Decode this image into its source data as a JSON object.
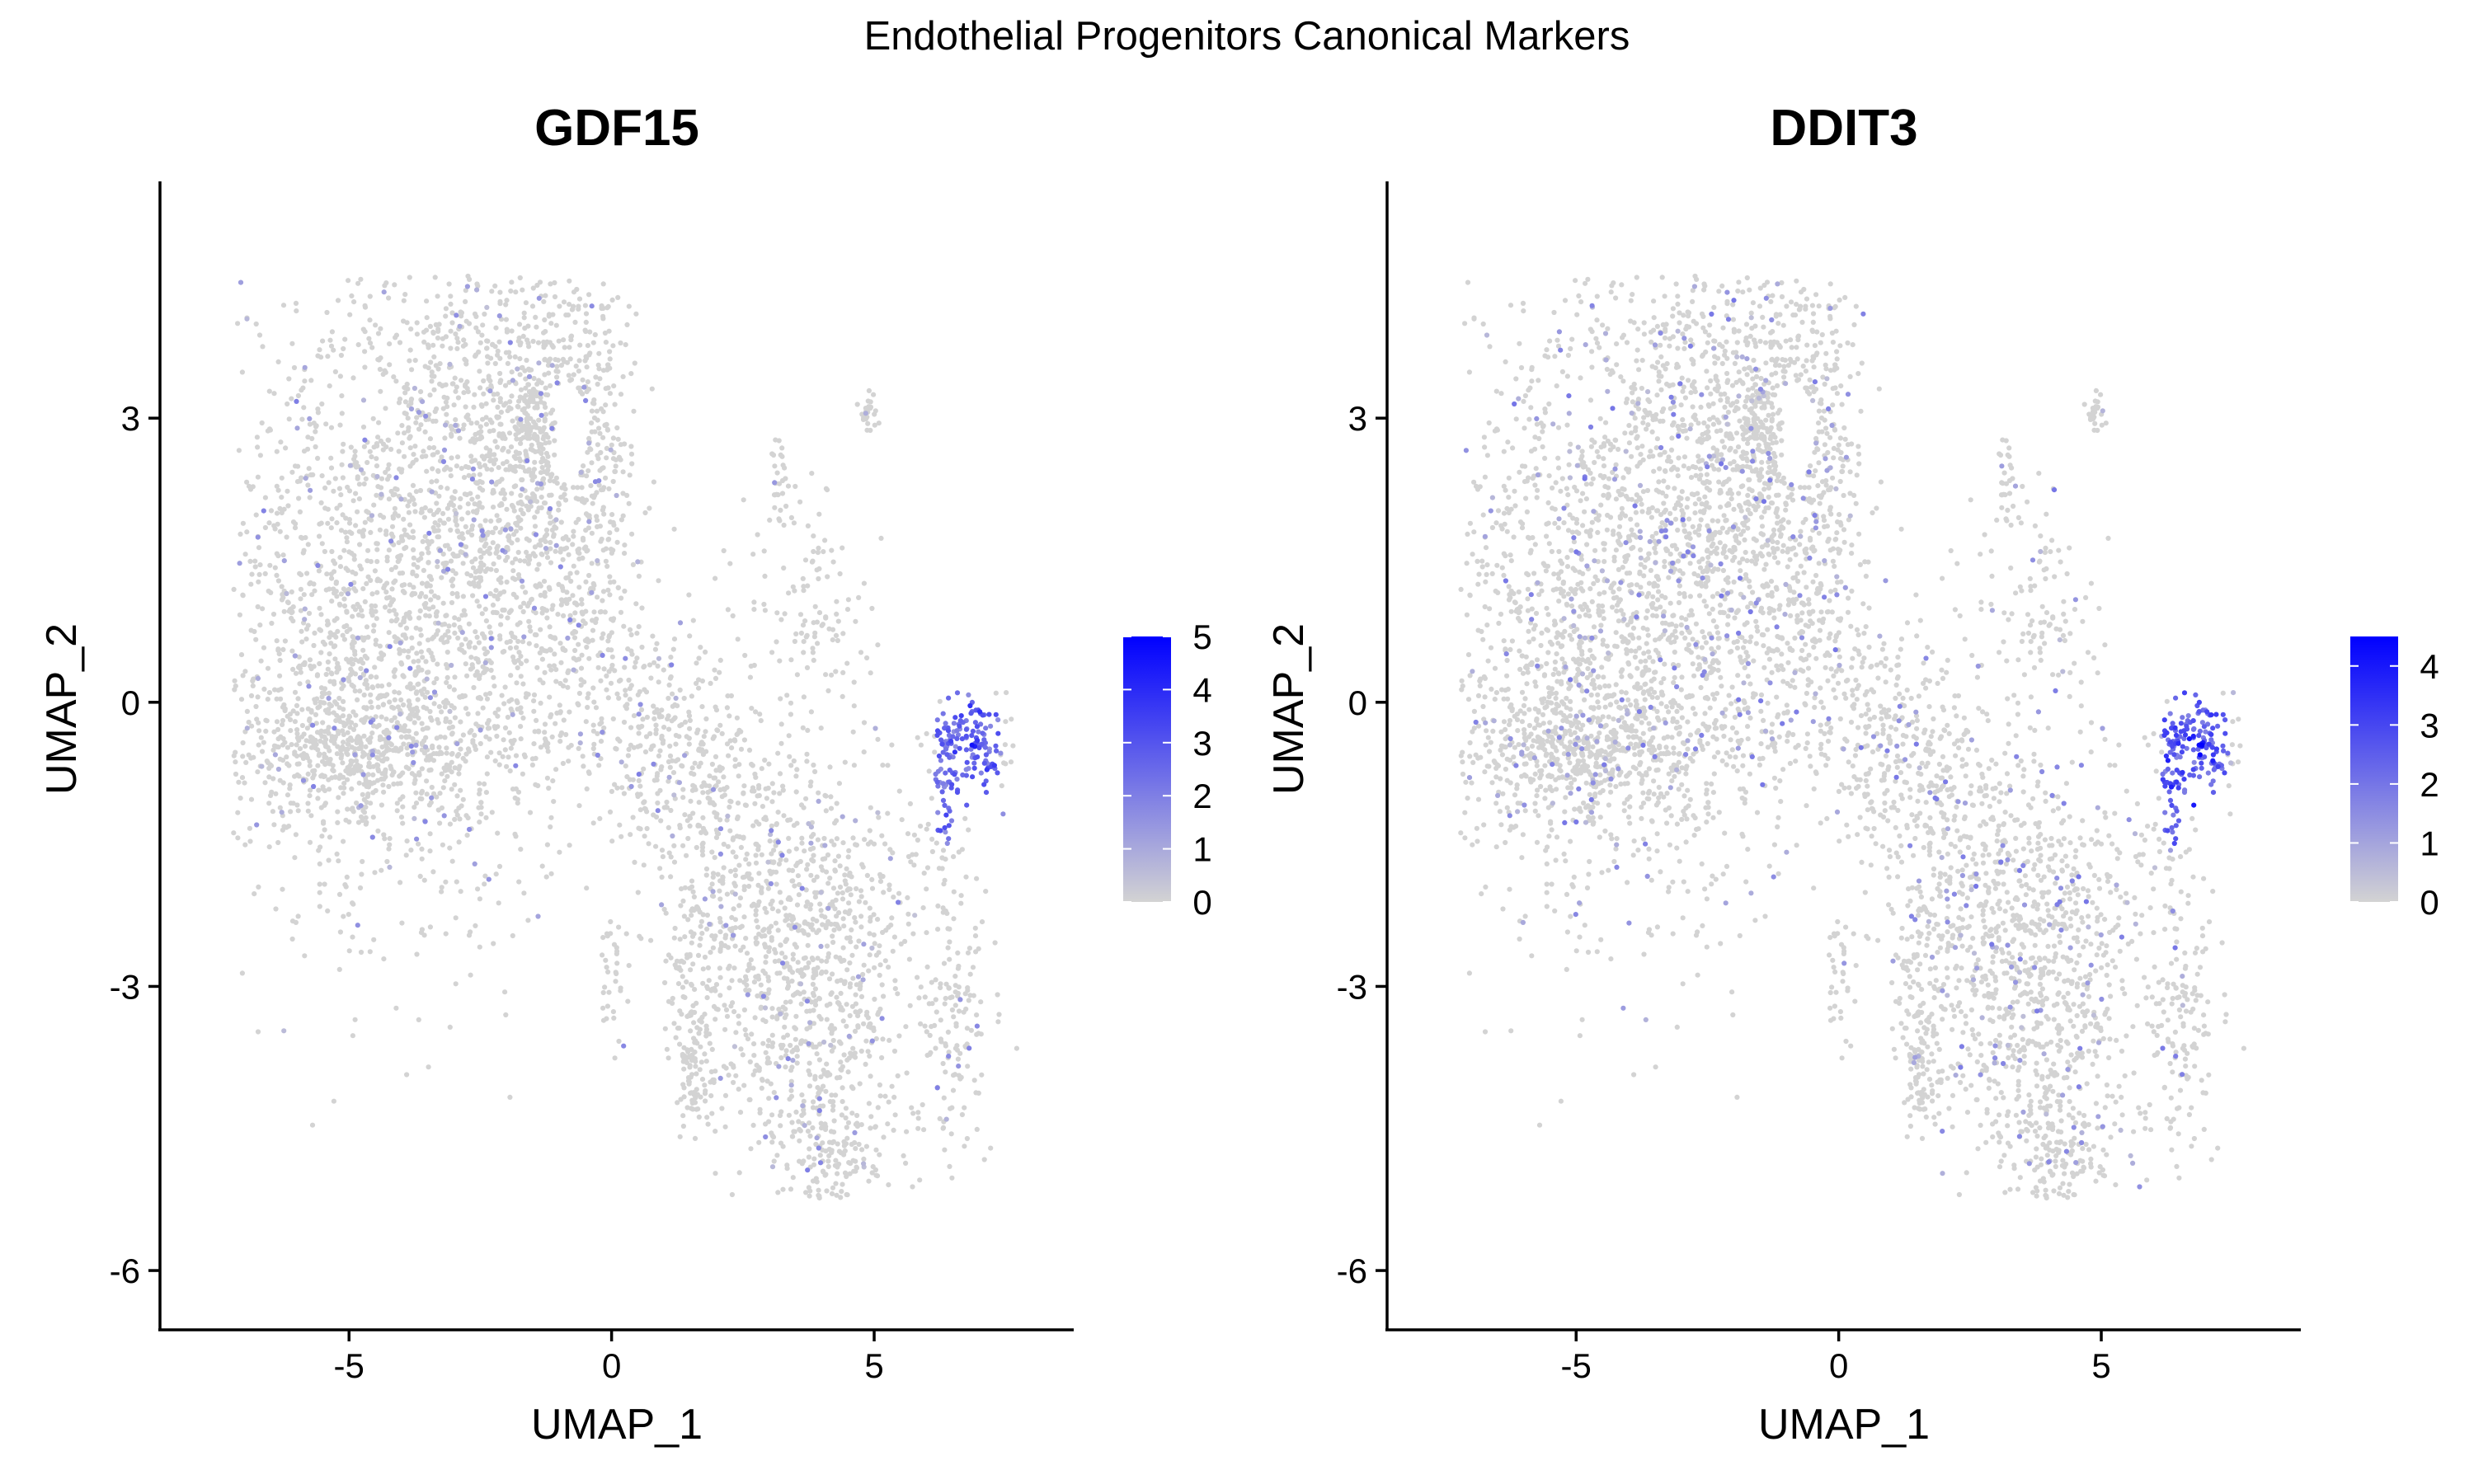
{
  "figure": {
    "title": "Endothelial Progenitors Canonical Markers"
  },
  "chart_data": [
    {
      "type": "scatter",
      "title": "GDF15",
      "xlabel": "UMAP_1",
      "ylabel": "UMAP_2",
      "xlim": [
        -8.6,
        8.8
      ],
      "ylim": [
        -6.6,
        5.5
      ],
      "xticks": [
        -5,
        0,
        5
      ],
      "yticks": [
        -6,
        -3,
        0,
        3
      ],
      "legend": {
        "placement": "right",
        "min": 0,
        "max": 5,
        "ticks": [
          0,
          1,
          2,
          3,
          4,
          5
        ],
        "low_color": "#d3d3d3",
        "high_color": "#0000ff"
      },
      "expression_profile": {
        "max_value": 5,
        "hotspot_center": [
          6.8,
          -0.4
        ],
        "hotspot_values": "mostly 2-3, peak 5",
        "background_values": "mostly 0, sparse 1-2"
      }
    },
    {
      "type": "scatter",
      "title": "DDIT3",
      "xlabel": "UMAP_1",
      "ylabel": "UMAP_2",
      "xlim": [
        -8.6,
        8.8
      ],
      "ylim": [
        -6.6,
        5.5
      ],
      "xticks": [
        -5,
        0,
        5
      ],
      "yticks": [
        -6,
        -3,
        0,
        3
      ],
      "legend": {
        "placement": "right",
        "min": 0,
        "max": 4.5,
        "ticks": [
          0,
          1,
          2,
          3,
          4
        ],
        "low_color": "#d3d3d3",
        "high_color": "#0000ff"
      },
      "expression_profile": {
        "max_value": 4.5,
        "hotspot_center": [
          6.8,
          -0.4
        ],
        "hotspot_values": "mostly 2-3, peak 4.5",
        "background_values": "mostly 0, more frequent 1-2"
      }
    }
  ]
}
